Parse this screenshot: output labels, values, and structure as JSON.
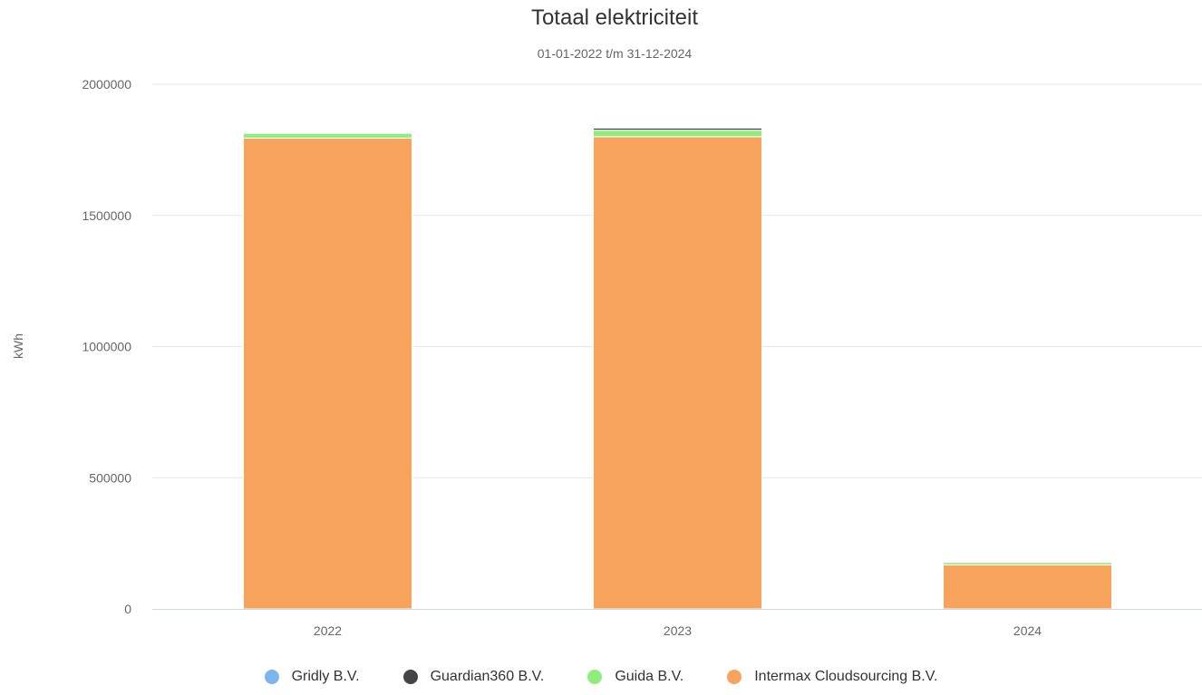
{
  "chart_data": {
    "type": "bar",
    "stacked": true,
    "title": "Totaal elektriciteit",
    "subtitle": "01-01-2022 t/m 31-12-2024",
    "xlabel": "",
    "ylabel": "kWh",
    "categories": [
      "2022",
      "2023",
      "2024"
    ],
    "ylim": [
      0,
      2000000
    ],
    "yticks": [
      "0",
      "500000",
      "1000000",
      "1500000",
      "2000000"
    ],
    "grid": true,
    "legend_position": "bottom",
    "series": [
      {
        "name": "Intermax Cloudsourcing B.V.",
        "color": "#f7a35c",
        "values": [
          1795000,
          1800000,
          168000
        ]
      },
      {
        "name": "Guida B.V.",
        "color": "#90ed7d",
        "values": [
          18000,
          25000,
          9000
        ]
      },
      {
        "name": "Guardian360 B.V.",
        "color": "#434348",
        "values": [
          0,
          8000,
          0
        ]
      },
      {
        "name": "Gridly B.V.",
        "color": "#7cb5ec",
        "values": [
          0,
          0,
          0
        ]
      }
    ],
    "legend_order": [
      "Gridly B.V.",
      "Guardian360 B.V.",
      "Guida B.V.",
      "Intermax Cloudsourcing B.V."
    ]
  }
}
